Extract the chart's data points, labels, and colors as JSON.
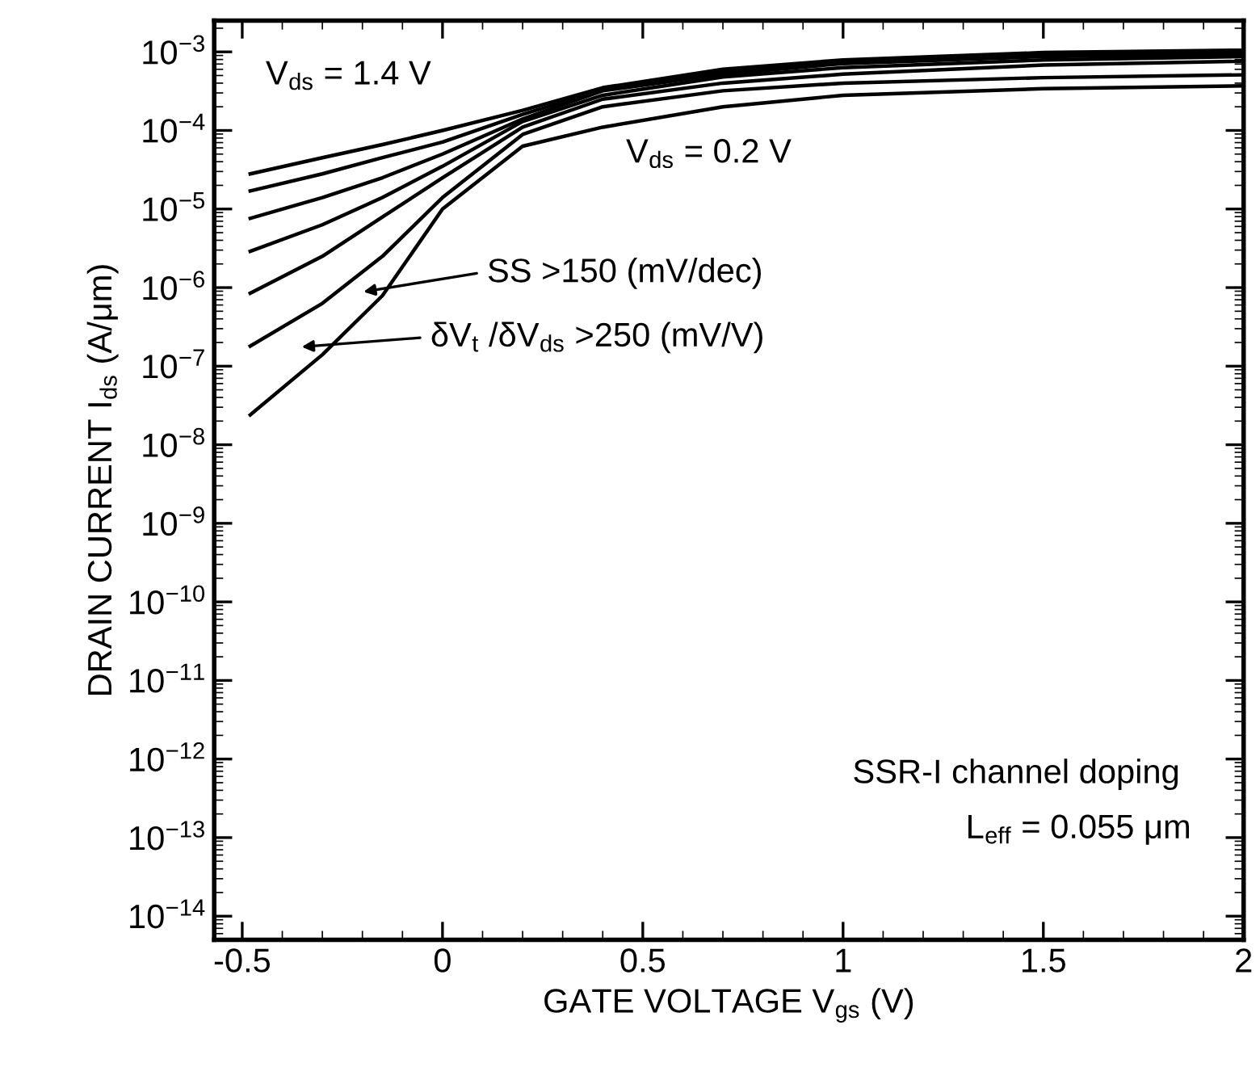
{
  "chart_data": {
    "type": "line",
    "xlabel": "GATE VOLTAGE V$_{gs}$ (V)",
    "ylabel": "DRAIN CURRENT I$_{ds}$ (A/μm)",
    "log": "y",
    "grid": false,
    "legend": false,
    "marker": "none",
    "line_style": "solid",
    "x": [
      -0.48,
      -0.3,
      -0.15,
      0,
      0.2,
      0.4,
      0.7,
      1.0,
      1.5,
      2.0
    ],
    "xlim": [
      -0.57,
      2.0
    ],
    "xticks": [
      {
        "value": -0.5,
        "label": "-0.5"
      },
      0,
      0.5,
      1,
      1.5,
      2
    ],
    "ylim": [
      5e-15,
      0.0025
    ],
    "yticks": [
      {
        "value": 1e-14,
        "label": "10$^{−14}$"
      },
      {
        "value": 1e-13,
        "label": "10$^{−13}$"
      },
      {
        "value": 1e-12,
        "label": "10$^{−12}$"
      },
      {
        "value": 1e-11,
        "label": "10$^{−11}$"
      },
      {
        "value": 1e-10,
        "label": "10$^{−10}$"
      },
      {
        "value": 1e-09,
        "label": "10$^{−9}$"
      },
      {
        "value": 1e-08,
        "label": "10$^{−8}$"
      },
      {
        "value": 1e-07,
        "label": "10$^{−7}$"
      },
      {
        "value": 1e-06,
        "label": "10$^{−6}$"
      },
      {
        "value": 1e-05,
        "label": "10$^{−5}$"
      },
      {
        "value": 0.0001,
        "label": "10$^{−4}$"
      },
      {
        "value": 0.001,
        "label": "10$^{−3}$"
      }
    ],
    "series": [
      {
        "color": "#000000",
        "values": [
          2.4e-08,
          1.4e-07,
          7.9e-07,
          1e-05,
          6.3e-05,
          0.00011,
          0.0002,
          0.00028,
          0.00034,
          0.00037
        ]
      },
      {
        "color": "#000000",
        "values": [
          1.8e-07,
          6.3e-07,
          2.5e-06,
          1.4e-05,
          8.9e-05,
          0.0002,
          0.00032,
          0.0004,
          0.00047,
          0.00051
        ]
      },
      {
        "color": "#000000",
        "values": [
          8.5e-07,
          2.5e-06,
          7.9e-06,
          2.5e-05,
          0.00011,
          0.00025,
          0.0004,
          0.00052,
          0.00068,
          0.00076
        ]
      },
      {
        "color": "#000000",
        "values": [
          2.9e-06,
          6.3e-06,
          1.4e-05,
          3.5e-05,
          0.00013,
          0.00028,
          0.00048,
          0.00063,
          0.00079,
          0.00087
        ]
      },
      {
        "color": "#000000",
        "values": [
          7.6e-06,
          1.4e-05,
          2.5e-05,
          5e-05,
          0.00014,
          0.00032,
          0.00052,
          0.00071,
          0.00087,
          0.00093
        ]
      },
      {
        "color": "#000000",
        "values": [
          1.7e-05,
          2.8e-05,
          4.5e-05,
          7.1e-05,
          0.00016,
          0.00033,
          0.00056,
          0.00076,
          0.00093,
          0.001
        ]
      },
      {
        "color": "#000000",
        "values": [
          2.8e-05,
          4.5e-05,
          6.6e-05,
          0.0001,
          0.00018,
          0.00035,
          0.0006,
          0.00079,
          0.00098,
          0.00105
        ]
      }
    ],
    "annotations": [
      "V$_{ds}$ = 1.4 V",
      "V$_{ds}$ = 0.2 V",
      "SS >150 (mV/dec)",
      "δV$_{t}$ /δV$_{ds}$ >250 (mV/V)",
      "SSR-I channel doping",
      "L$_{eff}$ = 0.055 μm"
    ]
  }
}
